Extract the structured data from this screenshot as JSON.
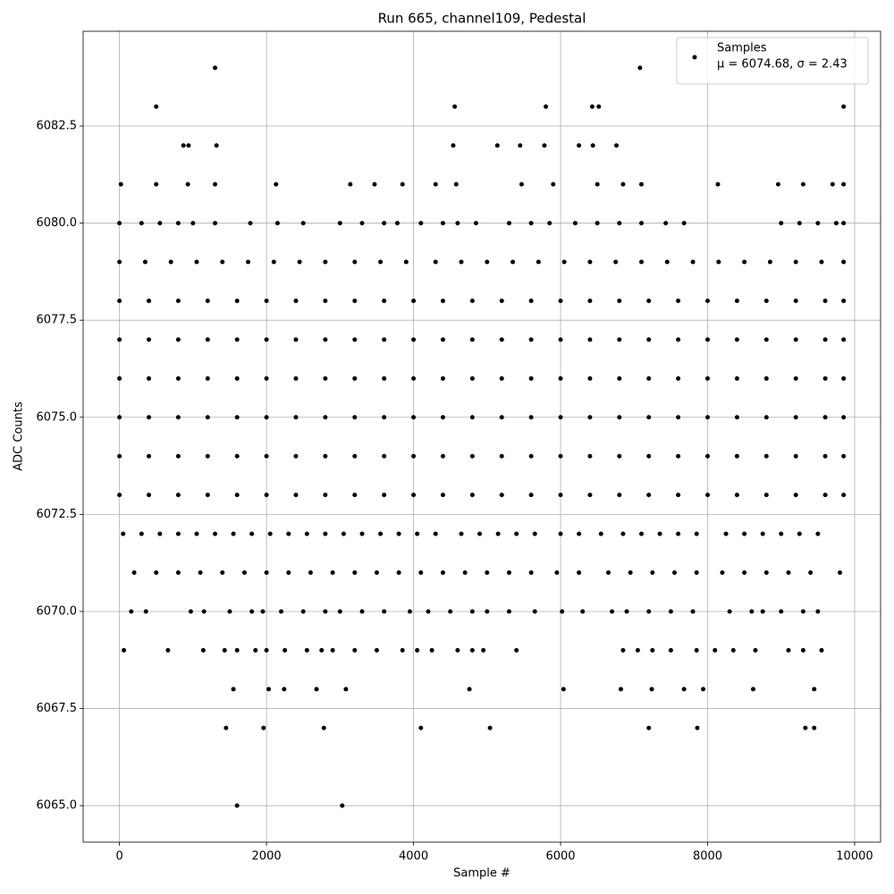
{
  "chart_data": {
    "type": "scatter",
    "title": "Run 665, channel109, Pedestal",
    "xlabel": "Sample #",
    "ylabel": "ADC Counts",
    "xlim": [
      -494,
      10353
    ],
    "ylim": [
      6064.06,
      6084.94
    ],
    "xticks": [
      0,
      2000,
      4000,
      6000,
      8000,
      10000
    ],
    "yticks": [
      {
        "value": 6065,
        "label": "6065.0"
      },
      {
        "value": 6067.5,
        "label": "6067.5"
      },
      {
        "value": 6070,
        "label": "6070.0"
      },
      {
        "value": 6072.5,
        "label": "6072.5"
      },
      {
        "value": 6075,
        "label": "6075.0"
      },
      {
        "value": 6077.5,
        "label": "6077.5"
      },
      {
        "value": 6080,
        "label": "6080.0"
      },
      {
        "value": 6082.5,
        "label": "6082.5"
      }
    ],
    "grid": true,
    "legend": "upper right",
    "legend_note": "μ = 6074.68, σ = 2.43",
    "series": [
      {
        "name": "Samples",
        "color": "#000000",
        "x": [
          1300,
          7080,
          500,
          4560,
          5800,
          6430,
          6520,
          9850,
          870,
          940,
          1320,
          4540,
          5140,
          5450,
          5780,
          6250,
          6440,
          6760,
          20,
          500,
          930,
          1300,
          2130,
          3140,
          3470,
          3850,
          4300,
          4580,
          5470,
          5900,
          6500,
          6850,
          7100,
          8140,
          8960,
          9300,
          9700,
          9850,
          0,
          300,
          550,
          800,
          1000,
          1300,
          1780,
          2150,
          2500,
          3000,
          3300,
          3600,
          3780,
          4100,
          4400,
          4600,
          4850,
          5300,
          5600,
          5850,
          6200,
          6500,
          6800,
          7100,
          7430,
          7680,
          9000,
          9250,
          9500,
          9750,
          9850,
          0,
          350,
          700,
          1050,
          1400,
          1750,
          2100,
          2450,
          2800,
          3200,
          3550,
          3900,
          4300,
          4650,
          5000,
          5350,
          5700,
          6050,
          6400,
          6750,
          7100,
          7450,
          7800,
          8150,
          8500,
          8850,
          9200,
          9550,
          9850,
          0,
          400,
          800,
          1200,
          1600,
          2000,
          2400,
          2800,
          3200,
          3600,
          4000,
          4400,
          4800,
          5200,
          5600,
          6000,
          6400,
          6800,
          7200,
          7600,
          8000,
          8400,
          8800,
          9200,
          9600,
          9850,
          0,
          400,
          800,
          1200,
          1600,
          2000,
          2400,
          2800,
          3200,
          3600,
          4000,
          4400,
          4800,
          5200,
          5600,
          6000,
          6400,
          6800,
          7200,
          7600,
          8000,
          8400,
          8800,
          9200,
          9600,
          9850,
          0,
          400,
          800,
          1200,
          1600,
          2000,
          2400,
          2800,
          3200,
          3600,
          4000,
          4400,
          4800,
          5200,
          5600,
          6000,
          6400,
          6800,
          7200,
          7600,
          8000,
          8400,
          8800,
          9200,
          9600,
          9850,
          0,
          400,
          800,
          1200,
          1600,
          2000,
          2400,
          2800,
          3200,
          3600,
          4000,
          4400,
          4800,
          5200,
          5600,
          6000,
          6400,
          6800,
          7200,
          7600,
          8000,
          8400,
          8800,
          9200,
          9600,
          9850,
          0,
          400,
          800,
          1200,
          1600,
          2000,
          2400,
          2800,
          3200,
          3600,
          4000,
          4400,
          4800,
          5200,
          5600,
          6000,
          6400,
          6800,
          7200,
          7600,
          8000,
          8400,
          8800,
          9200,
          9600,
          9850,
          0,
          400,
          800,
          1200,
          1600,
          2000,
          2400,
          2800,
          3200,
          3600,
          4000,
          4400,
          4800,
          5200,
          5600,
          6000,
          6400,
          6800,
          7200,
          7600,
          8000,
          8400,
          8800,
          9200,
          9600,
          9850,
          50,
          300,
          550,
          800,
          1050,
          1300,
          1550,
          1800,
          2050,
          2300,
          2550,
          2800,
          3050,
          3300,
          3550,
          3800,
          4050,
          4300,
          4650,
          4900,
          5150,
          5400,
          5650,
          6000,
          6250,
          6550,
          6850,
          7100,
          7350,
          7600,
          7850,
          8250,
          8500,
          8750,
          9000,
          9250,
          9500,
          200,
          500,
          800,
          1100,
          1400,
          1700,
          2000,
          2300,
          2600,
          2900,
          3200,
          3500,
          3800,
          4100,
          4400,
          4700,
          5000,
          5300,
          5600,
          5950,
          6250,
          6650,
          6950,
          7250,
          7550,
          7850,
          8200,
          8500,
          8800,
          9100,
          9400,
          9800,
          160,
          360,
          970,
          1150,
          1500,
          1800,
          1950,
          2200,
          2500,
          2800,
          3000,
          3300,
          3600,
          3950,
          4200,
          4500,
          4800,
          5000,
          5300,
          5650,
          6020,
          6300,
          6700,
          6900,
          7200,
          7500,
          7800,
          8300,
          8600,
          8750,
          9000,
          9300,
          9500,
          60,
          660,
          1140,
          1430,
          1600,
          1850,
          2000,
          2250,
          2550,
          2750,
          2900,
          3200,
          3500,
          3850,
          4050,
          4250,
          4600,
          4800,
          4950,
          5400,
          6850,
          7050,
          7250,
          7500,
          7850,
          8100,
          8350,
          8650,
          9100,
          9300,
          9550,
          1550,
          2030,
          2240,
          2680,
          3080,
          4760,
          6040,
          6820,
          7240,
          7680,
          7940,
          8620,
          9450,
          1450,
          1960,
          2780,
          4100,
          5040,
          7200,
          7860,
          9330,
          9450,
          1600,
          3030
        ],
        "values": [
          6084,
          6084,
          6083,
          6083,
          6083,
          6083,
          6083,
          6083,
          6082,
          6082,
          6082,
          6082,
          6082,
          6082,
          6082,
          6082,
          6082,
          6082,
          6081,
          6081,
          6081,
          6081,
          6081,
          6081,
          6081,
          6081,
          6081,
          6081,
          6081,
          6081,
          6081,
          6081,
          6081,
          6081,
          6081,
          6081,
          6081,
          6081,
          6080,
          6080,
          6080,
          6080,
          6080,
          6080,
          6080,
          6080,
          6080,
          6080,
          6080,
          6080,
          6080,
          6080,
          6080,
          6080,
          6080,
          6080,
          6080,
          6080,
          6080,
          6080,
          6080,
          6080,
          6080,
          6080,
          6080,
          6080,
          6080,
          6080,
          6080,
          6079,
          6079,
          6079,
          6079,
          6079,
          6079,
          6079,
          6079,
          6079,
          6079,
          6079,
          6079,
          6079,
          6079,
          6079,
          6079,
          6079,
          6079,
          6079,
          6079,
          6079,
          6079,
          6079,
          6079,
          6079,
          6079,
          6079,
          6079,
          6079,
          6078,
          6078,
          6078,
          6078,
          6078,
          6078,
          6078,
          6078,
          6078,
          6078,
          6078,
          6078,
          6078,
          6078,
          6078,
          6078,
          6078,
          6078,
          6078,
          6078,
          6078,
          6078,
          6078,
          6078,
          6078,
          6078,
          6077,
          6077,
          6077,
          6077,
          6077,
          6077,
          6077,
          6077,
          6077,
          6077,
          6077,
          6077,
          6077,
          6077,
          6077,
          6077,
          6077,
          6077,
          6077,
          6077,
          6077,
          6077,
          6077,
          6077,
          6077,
          6077,
          6076,
          6076,
          6076,
          6076,
          6076,
          6076,
          6076,
          6076,
          6076,
          6076,
          6076,
          6076,
          6076,
          6076,
          6076,
          6076,
          6076,
          6076,
          6076,
          6076,
          6076,
          6076,
          6076,
          6076,
          6076,
          6076,
          6075,
          6075,
          6075,
          6075,
          6075,
          6075,
          6075,
          6075,
          6075,
          6075,
          6075,
          6075,
          6075,
          6075,
          6075,
          6075,
          6075,
          6075,
          6075,
          6075,
          6075,
          6075,
          6075,
          6075,
          6075,
          6075,
          6074,
          6074,
          6074,
          6074,
          6074,
          6074,
          6074,
          6074,
          6074,
          6074,
          6074,
          6074,
          6074,
          6074,
          6074,
          6074,
          6074,
          6074,
          6074,
          6074,
          6074,
          6074,
          6074,
          6074,
          6074,
          6074,
          6073,
          6073,
          6073,
          6073,
          6073,
          6073,
          6073,
          6073,
          6073,
          6073,
          6073,
          6073,
          6073,
          6073,
          6073,
          6073,
          6073,
          6073,
          6073,
          6073,
          6073,
          6073,
          6073,
          6073,
          6073,
          6073,
          6072,
          6072,
          6072,
          6072,
          6072,
          6072,
          6072,
          6072,
          6072,
          6072,
          6072,
          6072,
          6072,
          6072,
          6072,
          6072,
          6072,
          6072,
          6072,
          6072,
          6072,
          6072,
          6072,
          6072,
          6072,
          6072,
          6072,
          6072,
          6072,
          6072,
          6072,
          6072,
          6072,
          6072,
          6072,
          6072,
          6072,
          6071,
          6071,
          6071,
          6071,
          6071,
          6071,
          6071,
          6071,
          6071,
          6071,
          6071,
          6071,
          6071,
          6071,
          6071,
          6071,
          6071,
          6071,
          6071,
          6071,
          6071,
          6071,
          6071,
          6071,
          6071,
          6071,
          6071,
          6071,
          6071,
          6071,
          6071,
          6071,
          6070,
          6070,
          6070,
          6070,
          6070,
          6070,
          6070,
          6070,
          6070,
          6070,
          6070,
          6070,
          6070,
          6070,
          6070,
          6070,
          6070,
          6070,
          6070,
          6070,
          6070,
          6070,
          6070,
          6070,
          6070,
          6070,
          6070,
          6070,
          6070,
          6070,
          6070,
          6070,
          6070,
          6069,
          6069,
          6069,
          6069,
          6069,
          6069,
          6069,
          6069,
          6069,
          6069,
          6069,
          6069,
          6069,
          6069,
          6069,
          6069,
          6069,
          6069,
          6069,
          6069,
          6069,
          6069,
          6069,
          6069,
          6069,
          6069,
          6069,
          6069,
          6069,
          6069,
          6069,
          6068,
          6068,
          6068,
          6068,
          6068,
          6068,
          6068,
          6068,
          6068,
          6068,
          6068,
          6068,
          6068,
          6067,
          6067,
          6067,
          6067,
          6067,
          6067,
          6067,
          6067,
          6067,
          6065,
          6065
        ]
      }
    ]
  }
}
